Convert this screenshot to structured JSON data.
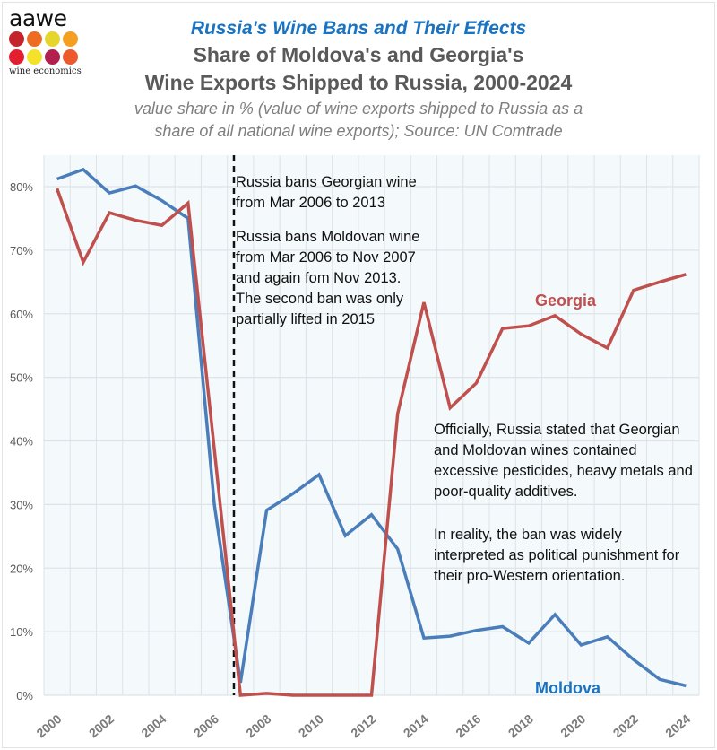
{
  "logo": {
    "word": "aawe",
    "subtitle": "wine economics",
    "dot_colors": [
      "#c4232b",
      "#ee6b22",
      "#e6d52d",
      "#f49f21",
      "#e31e2e",
      "#f3e227",
      "#b1204e",
      "#ec5a2b"
    ]
  },
  "colors": {
    "moldova": "#4a7ebb",
    "georgia": "#c0504d",
    "title_blue": "#1a73c0",
    "grid": "#dde3e8",
    "plot_bg": "#f4f9fb"
  },
  "chart_data": {
    "type": "line",
    "title": "Russia's Wine Bans and Their Effects",
    "subtitle_line1": "Share of Moldova's and Georgia's",
    "subtitle_line2": "Wine Exports Shipped to Russia, 2000-2024",
    "note_line1": "value share in % (value of wine exports shipped to Russia as a",
    "note_line2": "share of all national wine exports); Source: UN Comtrade",
    "xlabel": "",
    "ylabel": "",
    "x": [
      2000,
      2001,
      2002,
      2003,
      2004,
      2005,
      2006,
      2007,
      2008,
      2009,
      2010,
      2011,
      2012,
      2013,
      2014,
      2015,
      2016,
      2017,
      2018,
      2019,
      2020,
      2021,
      2022,
      2023,
      2024
    ],
    "x_tick_labels": [
      "2000",
      "2002",
      "2004",
      "2006",
      "2008",
      "2010",
      "2012",
      "2014",
      "2016",
      "2018",
      "2020",
      "2022",
      "2024"
    ],
    "y_ticks": [
      0,
      10,
      20,
      30,
      40,
      50,
      60,
      70,
      80
    ],
    "y_tick_labels": [
      "0%",
      "10%",
      "20%",
      "30%",
      "40%",
      "50%",
      "60%",
      "70%",
      "80%"
    ],
    "ylim": [
      0,
      85
    ],
    "grid": true,
    "series": [
      {
        "name": "Moldova",
        "values": [
          81.2,
          82.7,
          79.0,
          80.1,
          77.8,
          75.0,
          30.0,
          2.0,
          29.1,
          31.7,
          34.7,
          25.1,
          28.4,
          23.0,
          9.0,
          9.3,
          10.2,
          10.8,
          8.2,
          12.7,
          7.9,
          9.2,
          5.6,
          2.5,
          1.5
        ]
      },
      {
        "name": "Georgia",
        "values": [
          79.7,
          68.1,
          75.9,
          74.7,
          73.9,
          77.4,
          38.7,
          0.0,
          0.3,
          0.0,
          0.0,
          0.0,
          0.0,
          44.3,
          61.8,
          45.2,
          49.1,
          57.7,
          58.1,
          59.7,
          56.8,
          54.6,
          63.7,
          65.0,
          66.2
        ]
      }
    ],
    "ban_marker_year": 2006.75,
    "annotations": {
      "georgia_ban": [
        "Russia bans Georgian wine",
        "from Mar 2006 to 2013"
      ],
      "moldova_ban": [
        "Russia bans Moldovan wine",
        "from Mar 2006 to Nov 2007",
        "and again fom Nov 2013.",
        "The second ban was only",
        "partially lifted in 2015"
      ],
      "official": [
        "Officially, Russia stated that Georgian",
        "and Moldovan wines contained",
        "excessive pesticides, heavy metals and",
        "poor-quality additives."
      ],
      "reality": [
        "In reality, the ban was widely",
        "interpreted as political punishment for",
        "their pro-Western orientation."
      ],
      "georgia_label": "Georgia",
      "moldova_label": "Moldova"
    }
  }
}
